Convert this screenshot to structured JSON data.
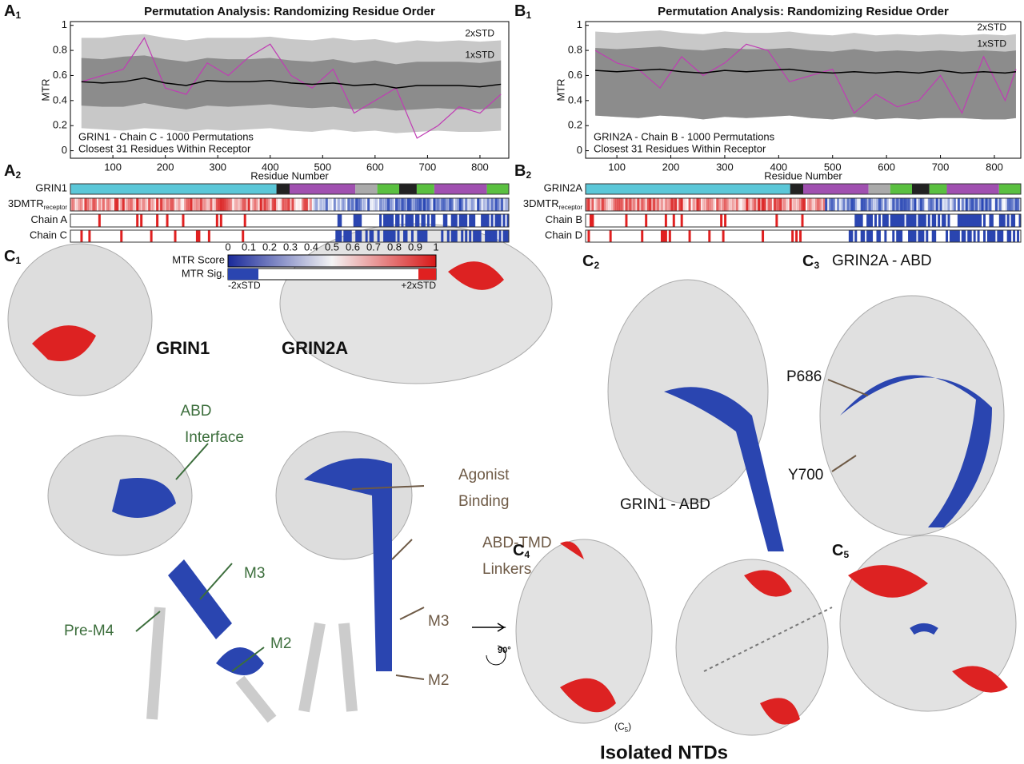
{
  "chart_data": [
    {
      "type": "line",
      "title": "Permutation Analysis: Randomizing Residue Order",
      "ylabel": "MTR",
      "xlabel": "Residue Number",
      "xlim": [
        19,
        855
      ],
      "ylim": [
        -0.06,
        1.03
      ],
      "xticks": [
        100,
        200,
        300,
        400,
        500,
        600,
        700,
        800
      ],
      "yticks": [
        0,
        0.2,
        0.4,
        0.6,
        0.8,
        1
      ],
      "annotations": [
        "GRIN1 - Chain C - 1000 Permutations",
        "Closest 31 Residues Within Receptor"
      ],
      "x": [
        40,
        80,
        120,
        160,
        200,
        240,
        280,
        320,
        360,
        400,
        440,
        480,
        520,
        560,
        600,
        640,
        680,
        720,
        760,
        800,
        840
      ],
      "bands": [
        {
          "name": "2xSTD",
          "color": "#c8c8c8",
          "upper": [
            0.9,
            0.9,
            0.92,
            0.93,
            0.9,
            0.88,
            0.9,
            0.9,
            0.9,
            0.91,
            0.89,
            0.88,
            0.9,
            0.88,
            0.89,
            0.86,
            0.88,
            0.87,
            0.88,
            0.87,
            0.88
          ],
          "lower": [
            0.18,
            0.17,
            0.16,
            0.18,
            0.17,
            0.15,
            0.17,
            0.16,
            0.17,
            0.18,
            0.16,
            0.15,
            0.17,
            0.15,
            0.16,
            0.14,
            0.15,
            0.16,
            0.15,
            0.15,
            0.16
          ]
        },
        {
          "name": "1xSTD",
          "color": "#8c8c8c",
          "upper": [
            0.74,
            0.73,
            0.75,
            0.76,
            0.73,
            0.71,
            0.74,
            0.73,
            0.73,
            0.74,
            0.72,
            0.71,
            0.73,
            0.7,
            0.72,
            0.69,
            0.71,
            0.71,
            0.71,
            0.7,
            0.72
          ],
          "lower": [
            0.36,
            0.35,
            0.35,
            0.38,
            0.35,
            0.33,
            0.36,
            0.35,
            0.36,
            0.37,
            0.35,
            0.34,
            0.35,
            0.33,
            0.34,
            0.32,
            0.33,
            0.34,
            0.33,
            0.33,
            0.34
          ]
        }
      ],
      "series": [
        {
          "color": "#c03cb4",
          "values": [
            0.55,
            0.6,
            0.65,
            0.9,
            0.5,
            0.45,
            0.7,
            0.6,
            0.75,
            0.85,
            0.6,
            0.5,
            0.65,
            0.3,
            0.4,
            0.5,
            0.1,
            0.2,
            0.35,
            0.3,
            0.45
          ]
        },
        {
          "color": "#000000",
          "values": [
            0.55,
            0.54,
            0.55,
            0.58,
            0.54,
            0.52,
            0.56,
            0.55,
            0.55,
            0.56,
            0.54,
            0.53,
            0.54,
            0.52,
            0.53,
            0.5,
            0.52,
            0.52,
            0.52,
            0.51,
            0.53
          ]
        }
      ]
    },
    {
      "type": "line",
      "title": "Permutation Analysis: Randomizing Residue Order",
      "ylabel": "MTR",
      "xlabel": "Residue Number",
      "xlim": [
        42,
        849
      ],
      "ylim": [
        -0.06,
        1.03
      ],
      "xticks": [
        100,
        200,
        300,
        400,
        500,
        600,
        700,
        800
      ],
      "yticks": [
        0,
        0.2,
        0.4,
        0.6,
        0.8,
        1
      ],
      "annotations": [
        "GRIN2A - Chain B - 1000 Permutations",
        "Closest 31 Residues Within Receptor"
      ],
      "x": [
        60,
        100,
        140,
        180,
        220,
        260,
        300,
        340,
        380,
        420,
        460,
        500,
        540,
        580,
        620,
        660,
        700,
        740,
        780,
        820,
        840
      ],
      "bands": [
        {
          "name": "2xSTD",
          "color": "#c8c8c8",
          "upper": [
            0.95,
            0.94,
            0.95,
            0.96,
            0.94,
            0.93,
            0.95,
            0.94,
            0.94,
            0.95,
            0.93,
            0.92,
            0.94,
            0.92,
            0.93,
            0.92,
            0.93,
            0.92,
            0.93,
            0.92,
            0.93
          ],
          "lower": [
            0.28,
            0.27,
            0.26,
            0.28,
            0.27,
            0.25,
            0.27,
            0.26,
            0.27,
            0.28,
            0.26,
            0.25,
            0.27,
            0.25,
            0.26,
            0.25,
            0.26,
            0.26,
            0.25,
            0.25,
            0.26
          ]
        },
        {
          "name": "1xSTD",
          "color": "#8c8c8c",
          "upper": [
            0.82,
            0.81,
            0.82,
            0.83,
            0.81,
            0.8,
            0.82,
            0.81,
            0.81,
            0.82,
            0.8,
            0.79,
            0.81,
            0.79,
            0.8,
            0.79,
            0.8,
            0.79,
            0.8,
            0.79,
            0.8
          ]
        },
        {
          "color": "#000000"
        }
      ],
      "series": [
        {
          "color": "#c03cb4",
          "values": [
            0.8,
            0.7,
            0.65,
            0.5,
            0.75,
            0.6,
            0.7,
            0.85,
            0.8,
            0.55,
            0.6,
            0.65,
            0.3,
            0.45,
            0.35,
            0.4,
            0.6,
            0.3,
            0.75,
            0.4,
            0.65
          ]
        },
        {
          "color": "#000000",
          "values": [
            0.64,
            0.63,
            0.64,
            0.65,
            0.63,
            0.62,
            0.64,
            0.63,
            0.64,
            0.65,
            0.63,
            0.62,
            0.63,
            0.62,
            0.63,
            0.62,
            0.64,
            0.62,
            0.63,
            0.62,
            0.63
          ]
        }
      ]
    }
  ],
  "panel_labels": [
    {
      "letter": "A",
      "sub": "1"
    },
    {
      "letter": "A",
      "sub": "2"
    },
    {
      "letter": "B",
      "sub": "1"
    },
    {
      "letter": "B",
      "sub": "2"
    },
    {
      "letter": "C",
      "sub": "1"
    },
    {
      "letter": "C",
      "sub": "2"
    },
    {
      "letter": "C",
      "sub": "3"
    },
    {
      "letter": "C",
      "sub": "4"
    },
    {
      "letter": "C",
      "sub": "5"
    }
  ],
  "tracks_a": {
    "rows": [
      {
        "text": "GRIN1"
      },
      {
        "text": "3DMTR",
        "sub": "receptor"
      },
      {
        "text": "Chain A"
      },
      {
        "text": "Chain C"
      }
    ]
  },
  "tracks_b": {
    "rows": [
      {
        "text": "GRIN2A"
      },
      {
        "text": "3DMTR",
        "sub": "receptor"
      },
      {
        "text": "Chain B"
      },
      {
        "text": "Chain D"
      }
    ]
  },
  "colorbar": {
    "score_label": "MTR Score",
    "sig_label": "MTR Sig.",
    "ticks": [
      0,
      0.1,
      0.2,
      0.3,
      0.4,
      0.5,
      0.6,
      0.7,
      0.8,
      0.9,
      1
    ],
    "low": "-2xSTD",
    "high": "+2xSTD"
  },
  "structure_labels": {
    "grin1": "GRIN1",
    "grin2a": "GRIN2A",
    "abd": "ABD",
    "interface": "Interface",
    "agonist": "Agonist",
    "binding": "Binding",
    "linkers1": "ABD-TMD",
    "linkers2": "Linkers",
    "m3_g": "M3",
    "m3_b": "M3",
    "pre_m4": "Pre-M4",
    "m2_g": "M2",
    "m2_b": "M2",
    "grin1_abd": "GRIN1 - ABD",
    "grin2a_abd": "GRIN2A - ABD",
    "p686": "P686",
    "y700": "Y700",
    "ntds": "Isolated NTDs",
    "rot": "90°",
    "view": "(C",
    "view_sub": "5",
    "view_end": ")"
  }
}
